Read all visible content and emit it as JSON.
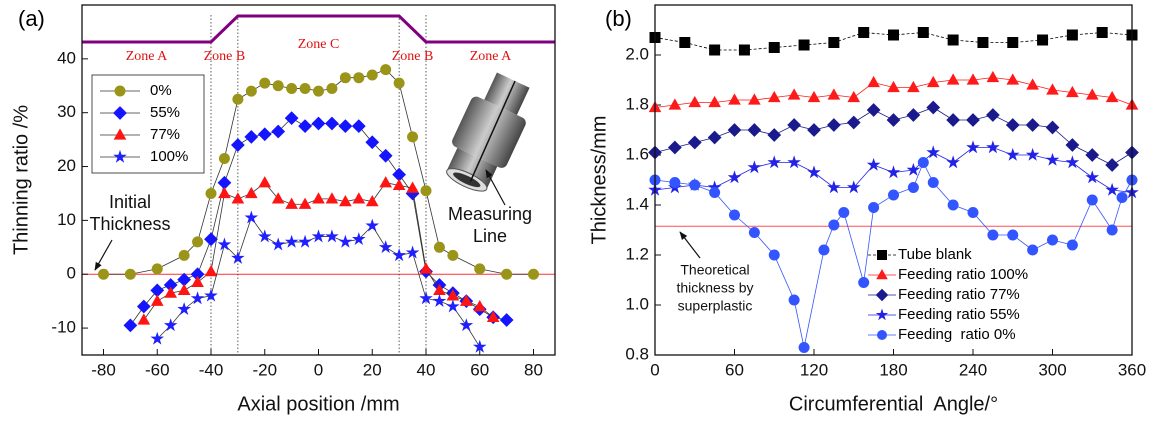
{
  "chart_data": [
    {
      "type": "line",
      "panel_label": "(a)",
      "xlabel": "Axial position /mm",
      "ylabel": "Thinning ratio /%",
      "xlim": [
        -88,
        88
      ],
      "xticks": [
        -80,
        -60,
        -40,
        -20,
        0,
        20,
        40,
        60,
        80
      ],
      "ylim": [
        -15,
        50
      ],
      "yticks": [
        -10,
        0,
        10,
        20,
        30,
        40
      ],
      "line_color": "#333333",
      "legend": "upper left",
      "legend_box": true,
      "vlines": [
        -40,
        -30,
        30,
        40
      ],
      "hline": 0,
      "hline_color": "#ff3030",
      "zones": [
        "Zone A",
        "Zone B",
        "Zone C",
        "Zone B",
        "Zone A"
      ],
      "zone_color": "#800080",
      "zone_text_color": "#e01010",
      "annotations": [
        {
          "text": [
            "Initial",
            "Thickness"
          ]
        },
        {
          "text": [
            "Measuring",
            "Line"
          ]
        }
      ],
      "series": [
        {
          "name": "0%",
          "color": "#9a9418",
          "marker": "circle",
          "x": [
            -80,
            -70,
            -60,
            -50,
            -45,
            -40,
            -35,
            -30,
            -25,
            -20,
            -15,
            -10,
            -5,
            0,
            5,
            10,
            15,
            20,
            25,
            30,
            35,
            40,
            45,
            50,
            60,
            70,
            80
          ],
          "values": [
            0,
            0,
            1,
            3.5,
            6,
            15,
            21.5,
            32.5,
            34,
            35.5,
            35,
            34.5,
            34.5,
            34,
            34.5,
            36.5,
            36.5,
            37,
            38,
            35.5,
            25.5,
            15.5,
            5,
            3.5,
            1,
            0,
            0
          ]
        },
        {
          "name": "55%",
          "color": "#1414ff",
          "marker": "diamond",
          "x": [
            -70,
            -65,
            -60,
            -55,
            -50,
            -45,
            -40,
            -35,
            -30,
            -25,
            -20,
            -15,
            -10,
            -5,
            0,
            5,
            10,
            15,
            20,
            25,
            30,
            35,
            40,
            45,
            50,
            55,
            60,
            65,
            70
          ],
          "values": [
            -9.5,
            -6,
            -3,
            -2,
            -1,
            0,
            6.5,
            17,
            24,
            25.5,
            26,
            26.5,
            29,
            27.5,
            28,
            28,
            27.5,
            27.5,
            24.5,
            22,
            18.5,
            15,
            0.5,
            -2,
            -3.5,
            -5,
            -6.5,
            -8,
            -8.5
          ]
        },
        {
          "name": "77%",
          "color": "#ff1414",
          "marker": "triangle",
          "x": [
            -65,
            -60,
            -55,
            -50,
            -45,
            -40,
            -35,
            -30,
            -25,
            -20,
            -15,
            -10,
            -5,
            0,
            5,
            10,
            15,
            20,
            25,
            30,
            35,
            40,
            45,
            50,
            55,
            60,
            65
          ],
          "values": [
            -8.5,
            -5,
            -3.5,
            -3,
            -1.5,
            0.5,
            15,
            14,
            15,
            17,
            14,
            13,
            13,
            14,
            14,
            13.5,
            14,
            13.5,
            17,
            16.5,
            16,
            1,
            -3,
            -4,
            -5,
            -6,
            -8
          ]
        },
        {
          "name": "100%",
          "color": "#2020ff",
          "marker": "star",
          "x": [
            -60,
            -55,
            -50,
            -45,
            -40,
            -35,
            -30,
            -25,
            -20,
            -15,
            -10,
            -5,
            0,
            5,
            10,
            15,
            20,
            25,
            30,
            35,
            40,
            45,
            50,
            55,
            60
          ],
          "values": [
            -12,
            -9.5,
            -6.5,
            -4.5,
            -4,
            5.5,
            3,
            10.5,
            7,
            5.5,
            6,
            6,
            7,
            7,
            6,
            6.5,
            9,
            5,
            3.5,
            4,
            -4.5,
            -5,
            -6,
            -9.5,
            -13.5
          ]
        }
      ]
    },
    {
      "type": "line",
      "panel_label": "(b)",
      "xlabel": "Circumferential  Angle/°",
      "ylabel": "Thickness/mm",
      "xlim": [
        0,
        360
      ],
      "xticks": [
        0,
        60,
        120,
        180,
        240,
        300,
        360
      ],
      "ylim": [
        0.8,
        2.2
      ],
      "yticks": [
        0.8,
        {
          "value": 1,
          "label": "1.0"
        },
        1.2,
        1.4,
        1.6,
        1.8,
        {
          "value": 2,
          "label": "2.0"
        }
      ],
      "legend": "lower right",
      "legend_box": false,
      "hline": 1.315,
      "hline_color": "#ff5050",
      "annotations": [
        {
          "text": [
            "Theoretical",
            "thickness by",
            "superplastic"
          ]
        }
      ],
      "series": [
        {
          "name": "Tube blank",
          "color": "#000000",
          "marker": "square",
          "dash": true,
          "x": [
            0,
            22.5,
            45,
            67.5,
            90,
            112.5,
            135,
            157.5,
            180,
            202.5,
            225,
            247.5,
            270,
            292.5,
            315,
            337.5,
            360
          ],
          "values": [
            2.07,
            2.05,
            2.02,
            2.02,
            2.03,
            2.04,
            2.05,
            2.09,
            2.08,
            2.09,
            2.06,
            2.05,
            2.05,
            2.06,
            2.08,
            2.09,
            2.08
          ]
        },
        {
          "name": "Feeding ratio 100%",
          "color": "#ff1a1a",
          "marker": "triangle",
          "x": [
            0,
            15,
            30,
            45,
            60,
            75,
            90,
            105,
            120,
            135,
            150,
            165,
            180,
            195,
            210,
            225,
            240,
            255,
            270,
            285,
            300,
            315,
            330,
            345,
            360
          ],
          "values": [
            1.79,
            1.8,
            1.81,
            1.81,
            1.82,
            1.82,
            1.83,
            1.84,
            1.83,
            1.84,
            1.83,
            1.89,
            1.87,
            1.87,
            1.89,
            1.9,
            1.9,
            1.91,
            1.9,
            1.88,
            1.86,
            1.85,
            1.84,
            1.83,
            1.8
          ]
        },
        {
          "name": "Feeding ratio 77%",
          "color": "#1a1a8c",
          "marker": "diamond",
          "x": [
            0,
            15,
            30,
            45,
            60,
            75,
            90,
            105,
            120,
            135,
            150,
            165,
            180,
            195,
            210,
            225,
            240,
            255,
            270,
            285,
            300,
            315,
            330,
            345,
            360
          ],
          "values": [
            1.61,
            1.63,
            1.65,
            1.67,
            1.7,
            1.7,
            1.68,
            1.72,
            1.7,
            1.72,
            1.73,
            1.78,
            1.74,
            1.76,
            1.79,
            1.74,
            1.74,
            1.76,
            1.72,
            1.72,
            1.71,
            1.64,
            1.6,
            1.56,
            1.61
          ]
        },
        {
          "name": "Feeding ratio 55%",
          "color": "#2323e6",
          "marker": "star",
          "x": [
            0,
            15,
            30,
            45,
            60,
            75,
            90,
            105,
            120,
            135,
            150,
            165,
            180,
            195,
            210,
            225,
            240,
            255,
            270,
            285,
            300,
            315,
            330,
            345,
            360
          ],
          "values": [
            1.46,
            1.47,
            1.48,
            1.47,
            1.51,
            1.55,
            1.57,
            1.57,
            1.53,
            1.47,
            1.47,
            1.56,
            1.53,
            1.54,
            1.61,
            1.57,
            1.63,
            1.63,
            1.6,
            1.6,
            1.58,
            1.57,
            1.51,
            1.46,
            1.45
          ]
        },
        {
          "name": "Feeding  ratio 0%",
          "color": "#3355ff",
          "marker": "circle",
          "x": [
            0,
            15,
            30,
            45,
            60,
            75,
            90,
            105,
            112.5,
            127.5,
            135,
            142.5,
            157.5,
            165,
            180,
            195,
            202.5,
            210,
            225,
            240,
            255,
            270,
            285,
            300,
            315,
            330,
            345,
            352.5,
            360
          ],
          "values": [
            1.5,
            1.49,
            1.48,
            1.45,
            1.36,
            1.29,
            1.2,
            1.02,
            0.83,
            1.22,
            1.32,
            1.37,
            1.09,
            1.39,
            1.44,
            1.47,
            1.57,
            1.49,
            1.4,
            1.37,
            1.28,
            1.28,
            1.22,
            1.26,
            1.24,
            1.42,
            1.3,
            1.43,
            1.5
          ]
        }
      ]
    }
  ]
}
